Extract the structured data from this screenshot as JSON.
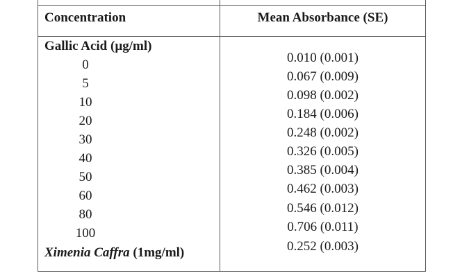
{
  "table": {
    "headers": {
      "concentration": "Concentration",
      "absorbance": "Mean Absorbance (SE)"
    },
    "group_label": "Gallic Acid (µg/ml)",
    "rows": [
      {
        "concentration": "0",
        "absorbance": "0.010 (0.001)"
      },
      {
        "concentration": "5",
        "absorbance": "0.067 (0.009)"
      },
      {
        "concentration": "10",
        "absorbance": "0.098 (0.002)"
      },
      {
        "concentration": "20",
        "absorbance": "0.184 (0.006)"
      },
      {
        "concentration": "30",
        "absorbance": "0.248 (0.002)"
      },
      {
        "concentration": "40",
        "absorbance": "0.326 (0.005)"
      },
      {
        "concentration": "50",
        "absorbance": "0.385 (0.004)"
      },
      {
        "concentration": "60",
        "absorbance": "0.462 (0.003)"
      },
      {
        "concentration": "80",
        "absorbance": "0.546 (0.012)"
      },
      {
        "concentration": "100",
        "absorbance": "0.706 (0.011)"
      }
    ],
    "sample": {
      "name": "Ximenia Caffra",
      "unit": "(1mg/ml)",
      "absorbance": "0.252 (0.003)"
    }
  }
}
